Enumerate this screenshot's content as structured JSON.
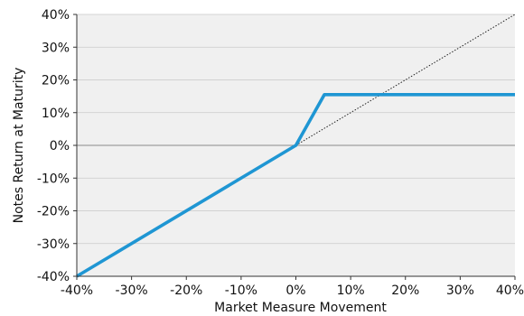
{
  "chart_data": {
    "type": "line",
    "title": "",
    "xlabel": "Market Measure Movement",
    "ylabel": "Notes Return at Maturity",
    "xlim": [
      -40,
      40
    ],
    "ylim": [
      -40,
      40
    ],
    "x_ticks": [
      -40,
      -30,
      -20,
      -10,
      0,
      10,
      20,
      30,
      40
    ],
    "y_ticks": [
      -40,
      -30,
      -20,
      -10,
      0,
      10,
      20,
      30,
      40
    ],
    "x_tick_labels": [
      "-40%",
      "-30%",
      "-20%",
      "-10%",
      "0%",
      "10%",
      "20%",
      "30%",
      "40%"
    ],
    "y_tick_labels": [
      "-40%",
      "-30%",
      "-20%",
      "-10%",
      "0%",
      "10%",
      "20%",
      "30%",
      "40%"
    ],
    "grid": "horizontal",
    "series": [
      {
        "style": "solid",
        "color": "#1f96d3",
        "x": [
          -40,
          0,
          5.2,
          40
        ],
        "y": [
          -40,
          0,
          15.5,
          15.5
        ]
      },
      {
        "style": "dotted",
        "color": "#222222",
        "x": [
          0,
          40
        ],
        "y": [
          0,
          40
        ]
      }
    ],
    "colors": {
      "plot_background": "#f0f0f0",
      "grid": "#c9c9c9",
      "axis": "#333333"
    }
  }
}
